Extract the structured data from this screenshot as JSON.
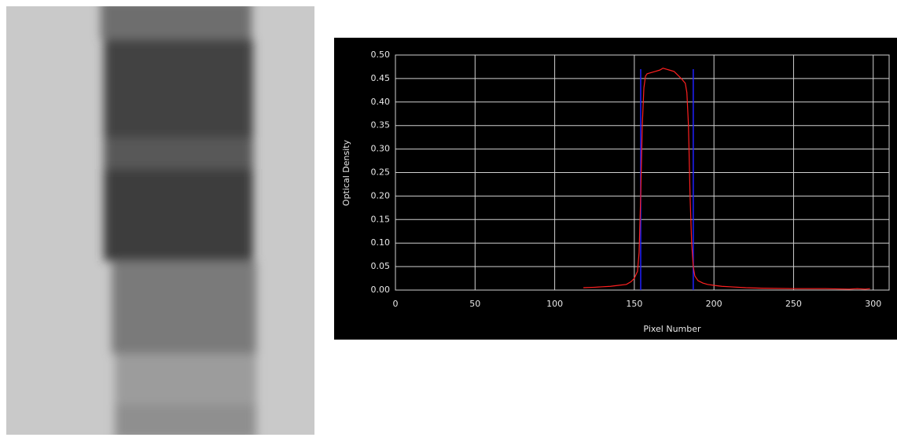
{
  "chart_data": {
    "type": "line",
    "xlabel": "Pixel Number",
    "ylabel": "Optical Density",
    "x": [
      118,
      125,
      130,
      135,
      140,
      145,
      148,
      150,
      152,
      153,
      154,
      155,
      156,
      157,
      158,
      160,
      163,
      166,
      168,
      170,
      172,
      175,
      178,
      180,
      182,
      183,
      184,
      185,
      186,
      187,
      188,
      190,
      193,
      196,
      200,
      205,
      210,
      220,
      230,
      250,
      270,
      285,
      290,
      295,
      298
    ],
    "values": [
      0.005,
      0.006,
      0.007,
      0.008,
      0.01,
      0.012,
      0.018,
      0.025,
      0.04,
      0.08,
      0.2,
      0.35,
      0.43,
      0.455,
      0.46,
      0.462,
      0.465,
      0.468,
      0.472,
      0.47,
      0.468,
      0.465,
      0.455,
      0.448,
      0.44,
      0.42,
      0.35,
      0.2,
      0.1,
      0.05,
      0.03,
      0.02,
      0.015,
      0.012,
      0.01,
      0.008,
      0.007,
      0.005,
      0.004,
      0.003,
      0.003,
      0.002,
      0.003,
      0.002,
      0.003
    ],
    "color": "#ff2020",
    "vlines": {
      "x": [
        154,
        187
      ],
      "top": 0.47,
      "color": "#2020ff"
    },
    "xlim": [
      0,
      310
    ],
    "ylim": [
      0,
      0.5
    ],
    "xticks": [
      0,
      50,
      100,
      150,
      200,
      250,
      300
    ],
    "yticks": [
      {
        "value": 0,
        "label": "0.00"
      },
      {
        "value": 0.05,
        "label": "0.05"
      },
      {
        "value": 0.1,
        "label": "0.10"
      },
      {
        "value": 0.15,
        "label": "0.15"
      },
      {
        "value": 0.2,
        "label": "0.20"
      },
      {
        "value": 0.25,
        "label": "0.25"
      },
      {
        "value": 0.3,
        "label": "0.30"
      },
      {
        "value": 0.35,
        "label": "0.35"
      },
      {
        "value": 0.4,
        "label": "0.40"
      },
      {
        "value": 0.45,
        "label": "0.45"
      },
      {
        "value": 0.5,
        "label": "0.50"
      }
    ],
    "grid": true
  }
}
